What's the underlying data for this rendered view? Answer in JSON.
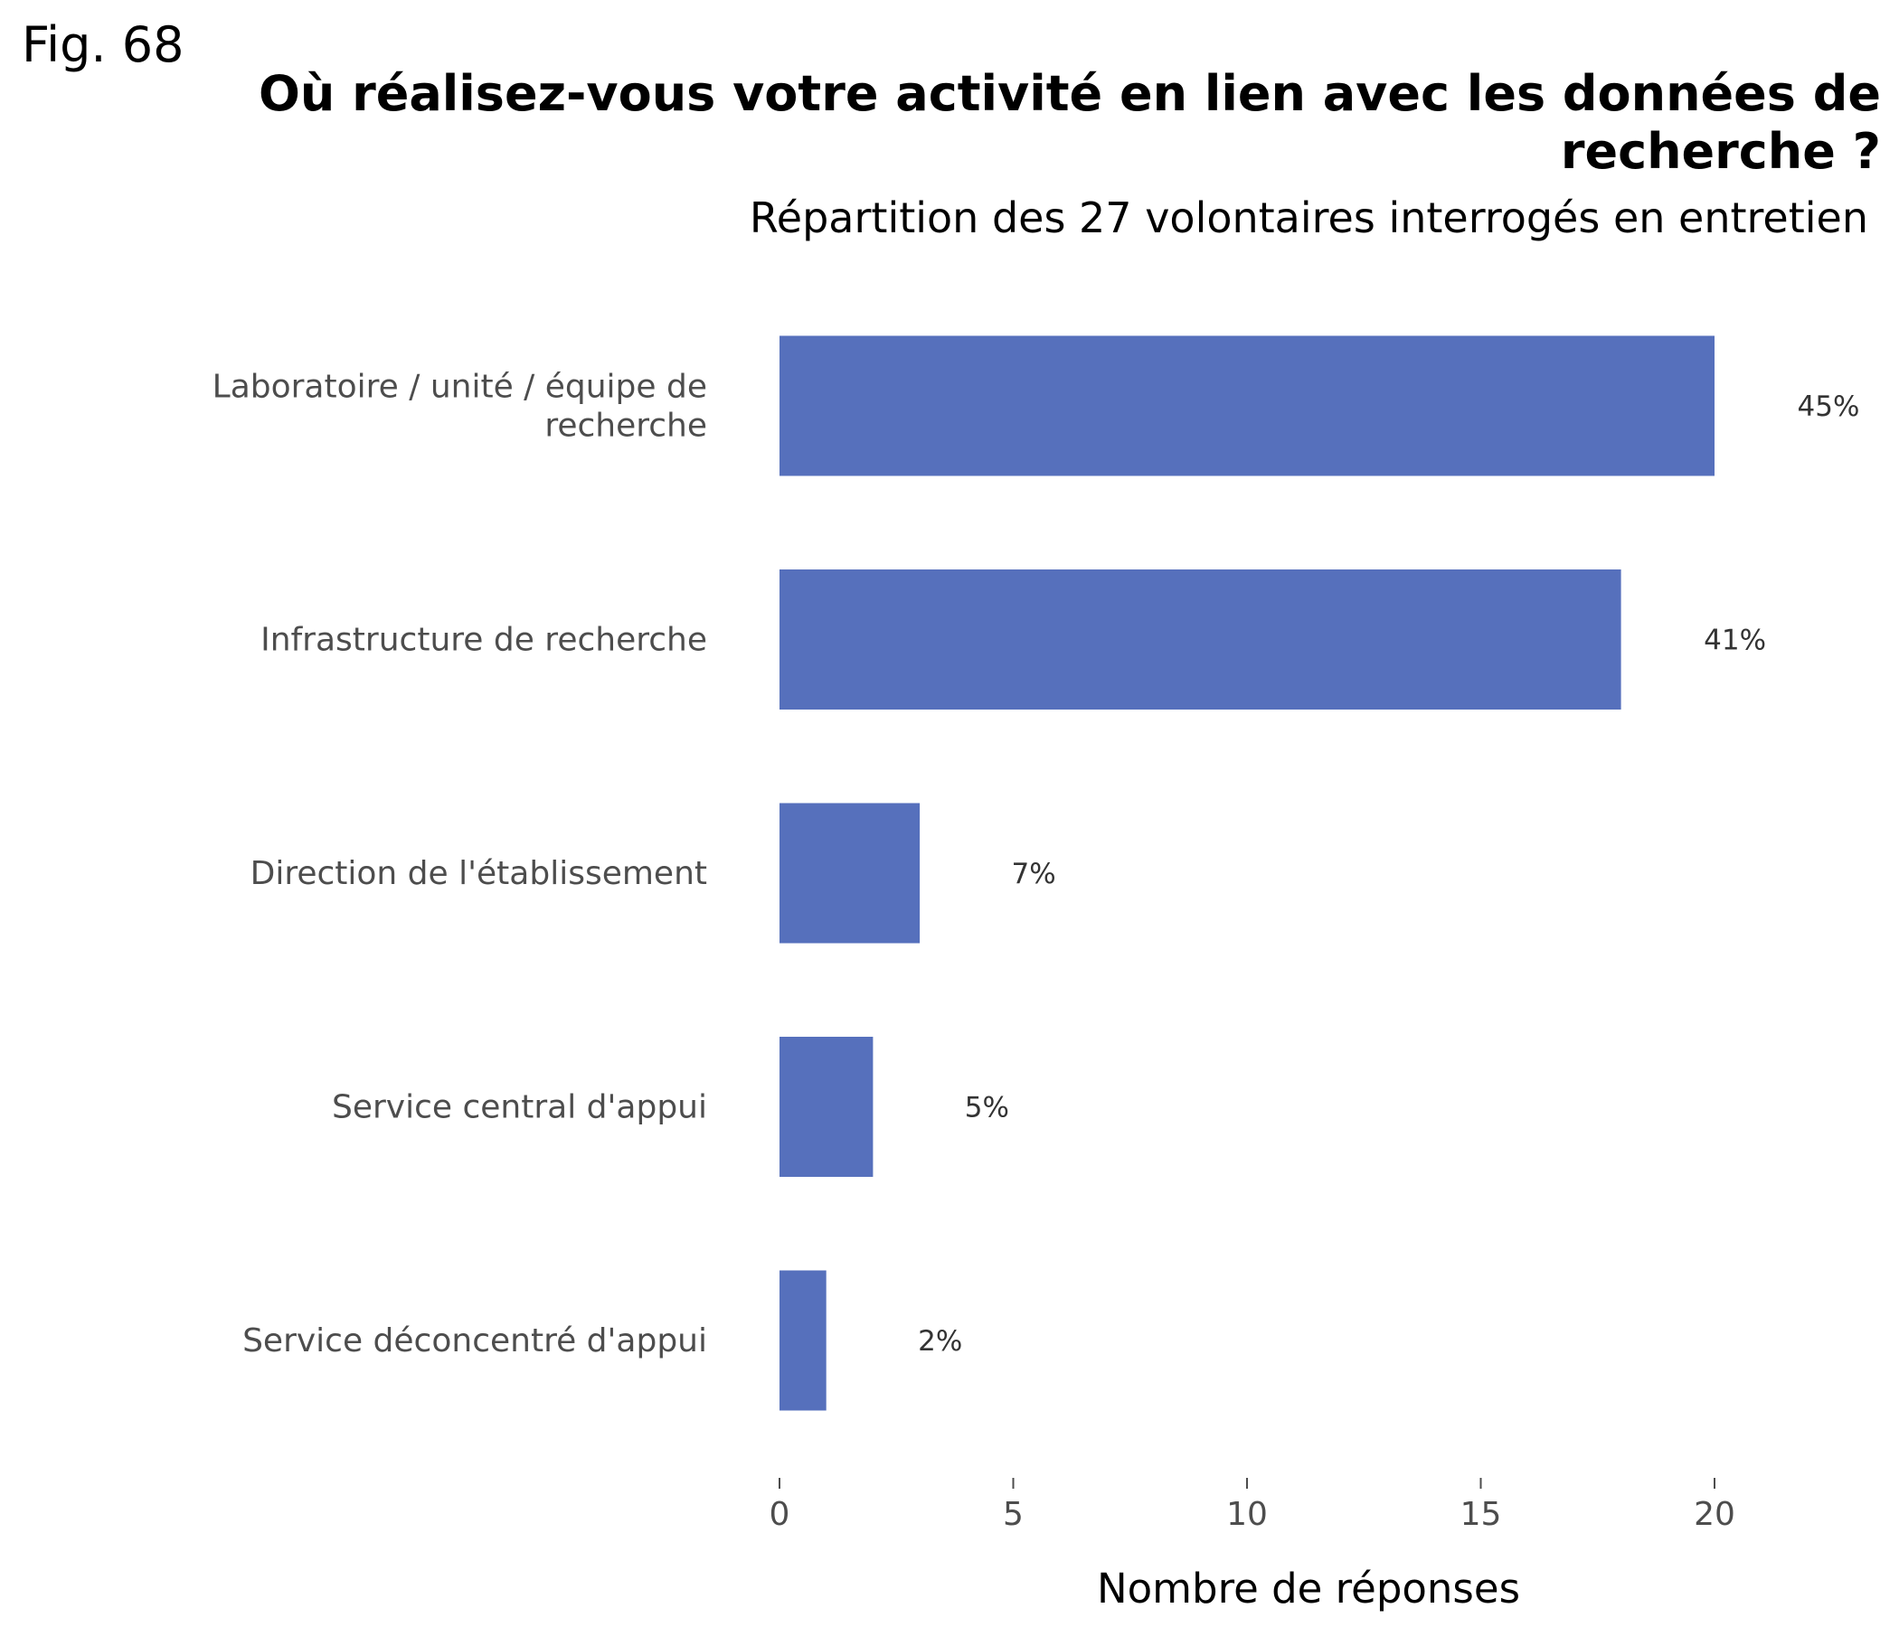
{
  "figure_label": "Fig. 68",
  "chart_data": {
    "type": "bar",
    "orientation": "horizontal",
    "title": "Où réalisez-vous votre activité en lien avec les données de recherche ?",
    "subtitle": "Répartition des 27 volontaires interrogés en entretien",
    "categories": [
      [
        "Laboratoire / unité / équipe de",
        "recherche"
      ],
      [
        "Infrastructure de recherche"
      ],
      [
        "Direction de l'établissement"
      ],
      [
        "Service central d'appui"
      ],
      [
        "Service déconcentré d'appui"
      ]
    ],
    "values": [
      20,
      18,
      3,
      2,
      1
    ],
    "data_labels": [
      "45%",
      "41%",
      "7%",
      "5%",
      "2%"
    ],
    "xlabel": "Nombre de réponses",
    "ylabel": "",
    "xlim": [
      0,
      22
    ],
    "xticks": [
      0,
      5,
      10,
      15,
      20
    ],
    "grid": false,
    "bar_color": "#5670bc"
  }
}
